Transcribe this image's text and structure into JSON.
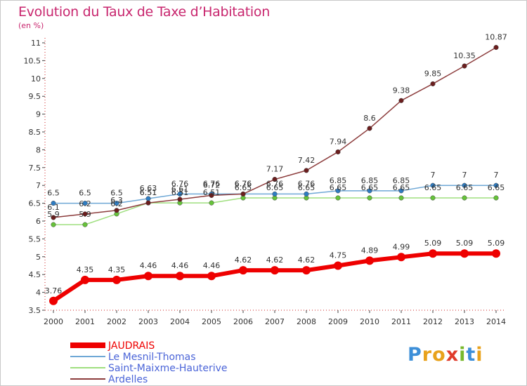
{
  "title": "Evolution du Taux de Taxe d’Habitation",
  "subtitle": "(en %)",
  "logo": {
    "text": "Proxiti",
    "letters": [
      {
        "ch": "P",
        "color": "#3d8fd8"
      },
      {
        "ch": "r",
        "color": "#e8a21c"
      },
      {
        "ch": "o",
        "color": "#e8a21c"
      },
      {
        "ch": "x",
        "color": "#e03b2b"
      },
      {
        "ch": "i",
        "color": "#77b82a"
      },
      {
        "ch": "t",
        "color": "#3d8fd8"
      },
      {
        "ch": "i",
        "color": "#e8a21c"
      }
    ]
  },
  "chart_data": {
    "type": "line",
    "title": "Evolution du Taux de Taxe d’Habitation",
    "subtitle": "(en %)",
    "x": [
      "2000",
      "2001",
      "2002",
      "2003",
      "2004",
      "2005",
      "2006",
      "2007",
      "2008",
      "2009",
      "2010",
      "2011",
      "2012",
      "2013",
      "2014"
    ],
    "ylim": [
      3.5,
      11
    ],
    "yticks": [
      "3.5",
      "4",
      "4.5",
      "5",
      "5.5",
      "6",
      "6.5",
      "7",
      "7.5",
      "8",
      "8.5",
      "9",
      "9.5",
      "10",
      "10.5",
      "11"
    ],
    "grid": false,
    "legend_position": "bottom-left",
    "series": [
      {
        "name": "JAUDRAIS",
        "color": "#ee0000",
        "values": [
          3.76,
          4.35,
          4.35,
          4.46,
          4.46,
          4.46,
          4.62,
          4.62,
          4.62,
          4.75,
          4.89,
          4.99,
          5.09,
          5.09,
          5.09
        ],
        "labels": [
          "3.76",
          "4.35",
          "4.35",
          "4.46",
          "4.46",
          "4.46",
          "4.62",
          "4.62",
          "4.62",
          "4.75",
          "4.89",
          "4.99",
          "5.09",
          "5.09",
          "5.09"
        ]
      },
      {
        "name": "Le Mesnil-Thomas",
        "color": "#6fa8d6",
        "marker_color": "#2e7cc2",
        "values": [
          6.5,
          6.5,
          6.5,
          6.63,
          6.76,
          6.76,
          6.76,
          6.76,
          6.76,
          6.85,
          6.85,
          6.85,
          7,
          7,
          7
        ],
        "labels": [
          "6.5",
          "6.5",
          "6.5",
          "6.63",
          "6.76",
          "6.76",
          "6.76",
          "6.76",
          "6.76",
          "6.85",
          "6.85",
          "6.85",
          "7",
          "7",
          "7"
        ]
      },
      {
        "name": "Saint-Maixme-Hauterive",
        "color": "#9fdf7f",
        "marker_color": "#66c23a",
        "values": [
          5.9,
          5.9,
          6.2,
          6.51,
          6.51,
          6.51,
          6.65,
          6.65,
          6.65,
          6.65,
          6.65,
          6.65,
          6.65,
          6.65,
          6.65
        ],
        "labels": [
          "5.9",
          "5.9",
          "6.2",
          "6.51",
          "6.51",
          "6.51",
          "6.65",
          "6.65",
          "6.65",
          "6.65",
          "6.65",
          "6.65",
          "6.65",
          "6.65",
          "6.65"
        ]
      },
      {
        "name": "Ardelles",
        "color": "#8c3c3c",
        "marker_color": "#6b1e1e",
        "values": [
          6.1,
          6.2,
          6.3,
          6.51,
          6.61,
          6.72,
          6.76,
          7.17,
          7.42,
          7.94,
          8.6,
          9.38,
          9.85,
          10.35,
          10.87
        ],
        "labels": [
          "6.1",
          "6.2",
          "6.3",
          "6.51",
          "6.61",
          "6.72",
          "6.76",
          "7.17",
          "7.42",
          "7.94",
          "8.6",
          "9.38",
          "9.85",
          "10.35",
          "10.87"
        ]
      }
    ]
  }
}
